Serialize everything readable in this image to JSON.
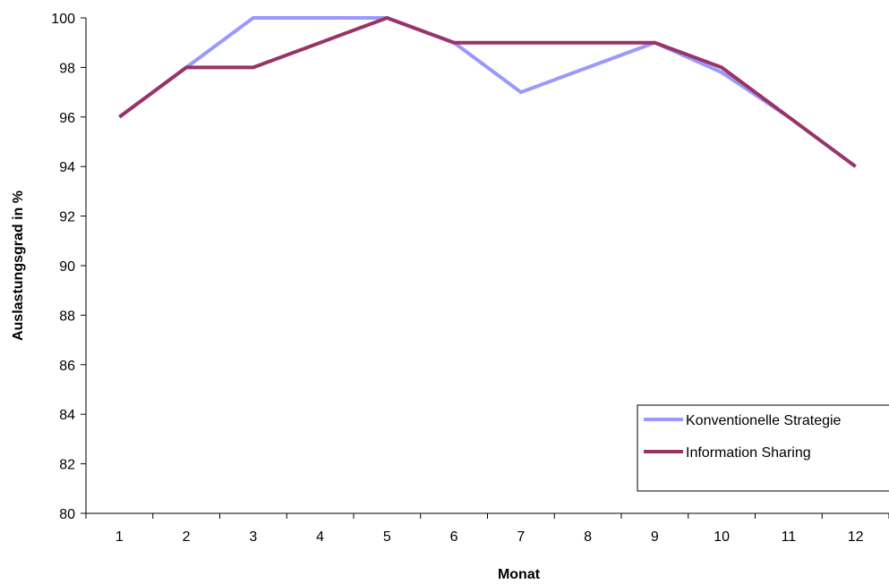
{
  "chart_data": {
    "type": "line",
    "title": "",
    "xlabel": "Monat",
    "ylabel": "Auslastungsgrad in %",
    "categories": [
      "1",
      "2",
      "3",
      "4",
      "5",
      "6",
      "7",
      "8",
      "9",
      "10",
      "11",
      "12"
    ],
    "ylim": [
      80,
      100
    ],
    "yticks": [
      80,
      82,
      84,
      86,
      88,
      90,
      92,
      94,
      96,
      98,
      100
    ],
    "grid": false,
    "legend_position": "bottom-right",
    "series": [
      {
        "name": "Konventionelle Strategie",
        "color": "#9999ff",
        "values": [
          96,
          98,
          100,
          100,
          100,
          99,
          97,
          98,
          99,
          97.8,
          96,
          94
        ]
      },
      {
        "name": "Information Sharing",
        "color": "#993366",
        "values": [
          96,
          98,
          98,
          99,
          100,
          99,
          99,
          99,
          99,
          98,
          96,
          94
        ]
      }
    ]
  }
}
